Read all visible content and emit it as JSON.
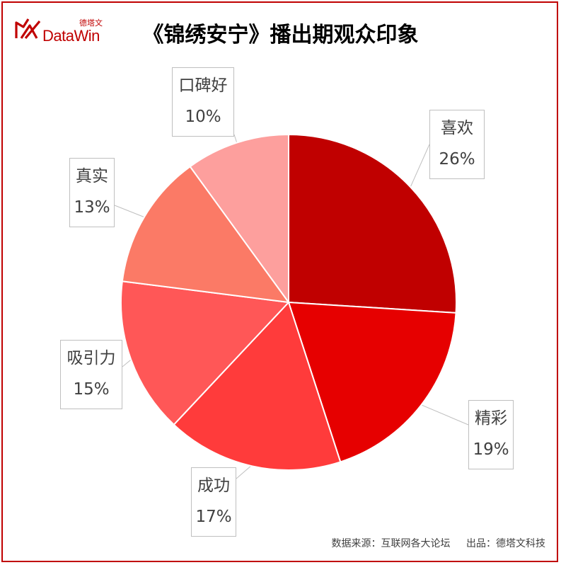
{
  "logo": {
    "brand_cn": "德塔文",
    "brand_en": "DataWin",
    "color": "#c00000"
  },
  "chart_data": {
    "type": "pie",
    "title": "《锦绣安宁》播出期观众印象",
    "slices": [
      {
        "label": "喜欢",
        "value": 26,
        "display": "26%",
        "color": "#c00000"
      },
      {
        "label": "精彩",
        "value": 19,
        "display": "19%",
        "color": "#e60000"
      },
      {
        "label": "成功",
        "value": 17,
        "display": "17%",
        "color": "#ff3b3b"
      },
      {
        "label": "吸引力",
        "value": 15,
        "display": "15%",
        "color": "#ff5757"
      },
      {
        "label": "真实",
        "value": 13,
        "display": "13%",
        "color": "#fb7a66"
      },
      {
        "label": "口碑好",
        "value": 10,
        "display": "10%",
        "color": "#fd9f9d"
      }
    ]
  },
  "footer": {
    "source": "数据来源：互联网各大论坛",
    "producer": "出品：德塔文科技"
  }
}
